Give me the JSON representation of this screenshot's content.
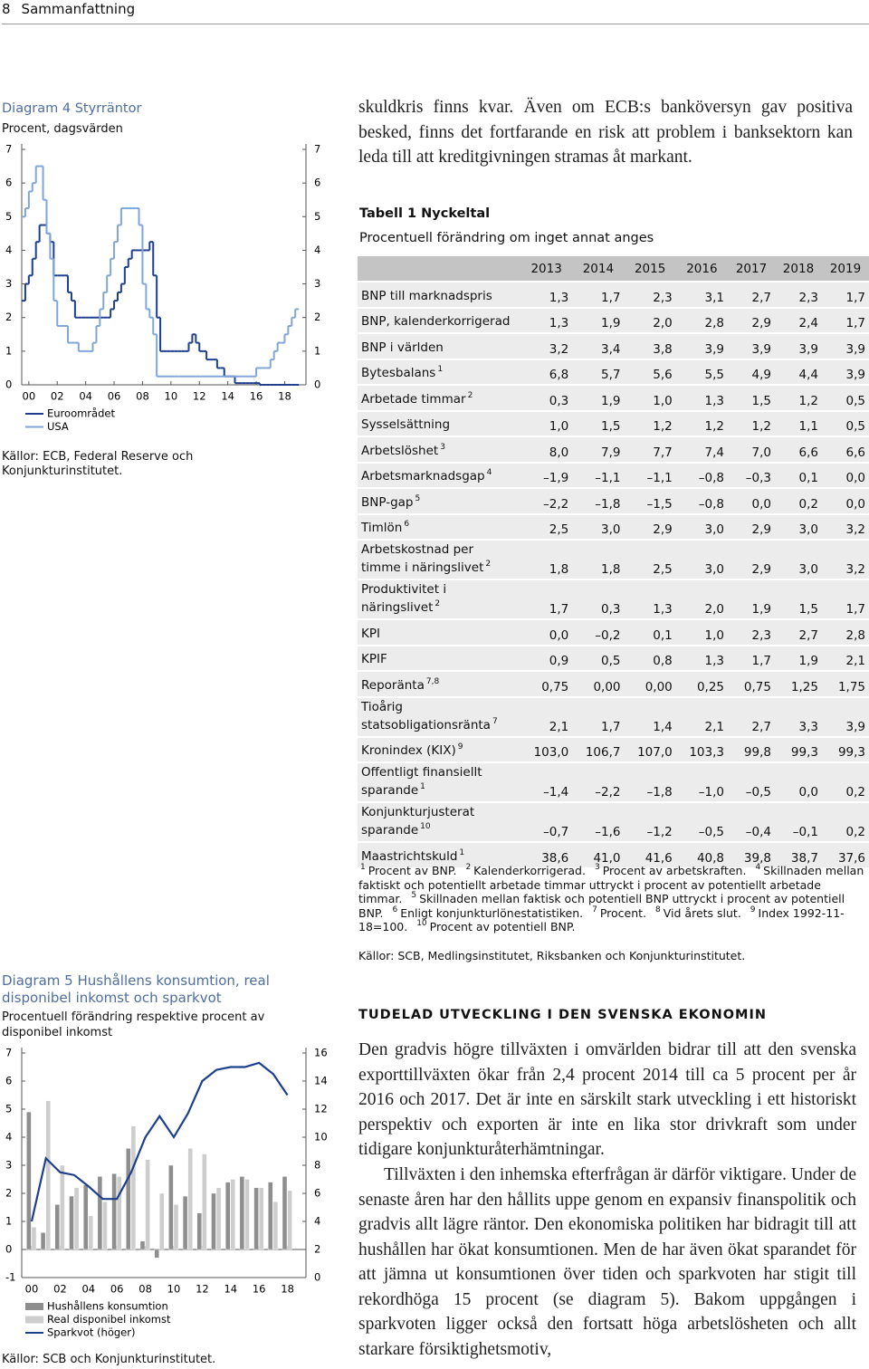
{
  "header": {
    "page": "8",
    "title": "Sammanfattning"
  },
  "chart_data": [
    {
      "type": "line",
      "step": true,
      "title": "Diagram 4 Styrräntor",
      "subtitle": "Procent, dagsvärden",
      "x": [
        1999.5,
        1999.75,
        2000,
        2000.25,
        2000.5,
        2000.75,
        2001,
        2001.25,
        2001.5,
        2001.75,
        2002,
        2002.25,
        2002.5,
        2002.75,
        2003,
        2003.25,
        2003.5,
        2003.75,
        2004,
        2004.25,
        2004.5,
        2004.75,
        2005,
        2005.25,
        2005.5,
        2005.75,
        2006,
        2006.25,
        2006.5,
        2006.75,
        2007,
        2007.25,
        2007.5,
        2007.75,
        2008,
        2008.25,
        2008.5,
        2008.75,
        2009,
        2009.25,
        2009.5,
        2009.75,
        2010,
        2010.25,
        2010.5,
        2010.75,
        2011,
        2011.25,
        2011.5,
        2011.75,
        2012,
        2012.25,
        2012.5,
        2012.75,
        2013,
        2013.25,
        2013.5,
        2013.75,
        2014,
        2014.25,
        2014.5,
        2014.75,
        2015,
        2015.25,
        2015.5,
        2015.75,
        2016,
        2016.25,
        2016.5,
        2016.75,
        2017,
        2017.25,
        2017.5,
        2017.75,
        2018,
        2018.25,
        2018.5,
        2018.75
      ],
      "xlim": [
        1999.5,
        2019.5
      ],
      "xticks": [
        {
          "value": 2000,
          "label": "00"
        },
        {
          "value": 2002,
          "label": "02"
        },
        {
          "value": 2004,
          "label": "04"
        },
        {
          "value": 2006,
          "label": "06"
        },
        {
          "value": 2008,
          "label": "08"
        },
        {
          "value": 2010,
          "label": "10"
        },
        {
          "value": 2012,
          "label": "12"
        },
        {
          "value": 2014,
          "label": "14"
        },
        {
          "value": 2016,
          "label": "16"
        },
        {
          "value": 2018,
          "label": "18"
        }
      ],
      "ylim": [
        0,
        7
      ],
      "yticks": [
        0,
        1,
        2,
        3,
        4,
        5,
        6,
        7
      ],
      "y2lim": [
        0,
        7
      ],
      "y2ticks": [
        0,
        1,
        2,
        3,
        4,
        5,
        6,
        7
      ],
      "series": [
        {
          "name": "Euroområdet",
          "color": "#1d3f8e",
          "values": [
            2.5,
            3,
            3.25,
            3.75,
            4.25,
            4.75,
            4.75,
            4.5,
            4.25,
            3.25,
            3.25,
            3.25,
            3.25,
            2.75,
            2.5,
            2,
            2,
            2,
            2,
            2,
            2,
            2,
            2,
            2,
            2,
            2.25,
            2.5,
            2.75,
            3,
            3.5,
            3.75,
            4,
            4,
            4,
            4,
            4,
            4.25,
            3.25,
            2,
            1,
            1,
            1,
            1,
            1,
            1,
            1,
            1,
            1.25,
            1.5,
            1.25,
            1,
            1,
            0.75,
            0.75,
            0.75,
            0.5,
            0.5,
            0.25,
            0.25,
            0.25,
            0.05,
            0.05,
            0.05,
            0.05,
            0.05,
            0.05,
            0.05,
            0,
            0,
            0,
            0,
            0,
            0,
            0,
            0,
            0,
            0,
            0
          ]
        },
        {
          "name": "USA",
          "color": "#7fa6d6",
          "values": [
            5,
            5.25,
            5.75,
            6,
            6.5,
            6.5,
            5.5,
            4.5,
            3.75,
            2.5,
            1.75,
            1.75,
            1.75,
            1.25,
            1.25,
            1.25,
            1,
            1,
            1,
            1,
            1.25,
            1.75,
            2.25,
            2.75,
            3.25,
            3.75,
            4.25,
            4.75,
            5.25,
            5.25,
            5.25,
            5.25,
            5.25,
            4.75,
            3,
            2.25,
            2,
            1.5,
            0.25,
            0.25,
            0.25,
            0.25,
            0.25,
            0.25,
            0.25,
            0.25,
            0.25,
            0.25,
            0.25,
            0.25,
            0.25,
            0.25,
            0.25,
            0.25,
            0.25,
            0.25,
            0.25,
            0.25,
            0.25,
            0.25,
            0.25,
            0.25,
            0.25,
            0.25,
            0.25,
            0.25,
            0.5,
            0.5,
            0.5,
            0.5,
            0.75,
            1,
            1.25,
            1.25,
            1.5,
            1.75,
            2,
            2.25
          ]
        }
      ],
      "source": "Källor: ECB, Federal Reserve och Konjunkturinstitutet."
    },
    {
      "type": "combo",
      "title": "Diagram 5 Hushållens konsumtion, real disponibel inkomst och sparkvot",
      "subtitle": "Procentuell förändring respektive procent av disponibel inkomst",
      "x": [
        2000,
        2001,
        2002,
        2003,
        2004,
        2005,
        2006,
        2007,
        2008,
        2009,
        2010,
        2011,
        2012,
        2013,
        2014,
        2015,
        2016,
        2017,
        2018
      ],
      "xlim": [
        1999.3,
        2019.3
      ],
      "xticks": [
        {
          "value": 2000,
          "label": "00"
        },
        {
          "value": 2002,
          "label": "02"
        },
        {
          "value": 2004,
          "label": "04"
        },
        {
          "value": 2006,
          "label": "06"
        },
        {
          "value": 2008,
          "label": "08"
        },
        {
          "value": 2010,
          "label": "10"
        },
        {
          "value": 2012,
          "label": "12"
        },
        {
          "value": 2014,
          "label": "14"
        },
        {
          "value": 2016,
          "label": "16"
        },
        {
          "value": 2018,
          "label": "18"
        }
      ],
      "ylim": [
        -1,
        7
      ],
      "yticks": [
        -1,
        0,
        1,
        2,
        3,
        4,
        5,
        6,
        7
      ],
      "y2lim": [
        0,
        16
      ],
      "y2ticks": [
        0,
        2,
        4,
        6,
        8,
        10,
        12,
        14,
        16
      ],
      "series": [
        {
          "name": "Hushållens konsumtion",
          "type": "bar",
          "color": "#8e8e8e",
          "values": [
            4.9,
            0.6,
            1.6,
            1.9,
            2.3,
            2.6,
            2.7,
            3.6,
            0.3,
            -0.3,
            3,
            1.9,
            1.3,
            2,
            2.4,
            2.6,
            2.2,
            2.4,
            2.6
          ]
        },
        {
          "name": "Real disponibel inkomst",
          "type": "bar",
          "color": "#cdcdcd",
          "values": [
            0.8,
            5.3,
            3,
            2.2,
            1.2,
            1.7,
            2.6,
            4.4,
            3.2,
            2,
            1.6,
            3.6,
            3.4,
            2.2,
            2.5,
            2.5,
            2.2,
            1.7,
            2.1
          ]
        },
        {
          "name": "Sparkvot (höger)",
          "type": "line",
          "axis": "y2",
          "color": "#1d3f8e",
          "values": [
            4,
            8.5,
            7.5,
            7.3,
            6.5,
            5.6,
            5.6,
            7.5,
            10,
            11.5,
            10,
            11.7,
            14,
            14.8,
            15,
            15,
            15.3,
            14.5,
            13
          ]
        }
      ],
      "source": "Källor: SCB och Konjunkturinstitutet."
    }
  ],
  "intro": "skuldkris finns kvar. Även om ECB:s banköversyn gav positiva besked, finns det fortfarande en risk att problem i banksektorn kan leda till att kreditgivningen stramas åt markant.",
  "table": {
    "title": "Tabell 1 Nyckeltal",
    "subtitle": "Procentuell förändring om inget annat anges",
    "years": [
      "2013",
      "2014",
      "2015",
      "2016",
      "2017",
      "2018",
      "2019"
    ],
    "rows": [
      {
        "label": "BNP till marknadspris",
        "values": [
          "1,3",
          "1,7",
          "2,3",
          "3,1",
          "2,7",
          "2,3",
          "1,7"
        ]
      },
      {
        "label": "BNP, kalenderkorrigerad",
        "values": [
          "1,3",
          "1,9",
          "2,0",
          "2,8",
          "2,9",
          "2,4",
          "1,7"
        ]
      },
      {
        "label": "BNP i världen",
        "values": [
          "3,2",
          "3,4",
          "3,8",
          "3,9",
          "3,9",
          "3,9",
          "3,9"
        ]
      },
      {
        "label": "Bytesbalans",
        "note": "1",
        "values": [
          "6,8",
          "5,7",
          "5,6",
          "5,5",
          "4,9",
          "4,4",
          "3,9"
        ]
      },
      {
        "label": "Arbetade timmar",
        "note": "2",
        "values": [
          "0,3",
          "1,9",
          "1,0",
          "1,3",
          "1,5",
          "1,2",
          "0,5"
        ]
      },
      {
        "label": "Sysselsättning",
        "values": [
          "1,0",
          "1,5",
          "1,2",
          "1,2",
          "1,2",
          "1,1",
          "0,5"
        ]
      },
      {
        "label": "Arbetslöshet",
        "note": "3",
        "values": [
          "8,0",
          "7,9",
          "7,7",
          "7,4",
          "7,0",
          "6,6",
          "6,6"
        ]
      },
      {
        "label": "Arbetsmarknadsgap",
        "note": "4",
        "values": [
          "–1,9",
          "–1,1",
          "–1,1",
          "–0,8",
          "–0,3",
          "0,1",
          "0,0"
        ]
      },
      {
        "label": "BNP-gap",
        "note": "5",
        "values": [
          "–2,2",
          "–1,8",
          "–1,5",
          "–0,8",
          "0,0",
          "0,2",
          "0,0"
        ]
      },
      {
        "label": "Timlön",
        "note": "6",
        "values": [
          "2,5",
          "3,0",
          "2,9",
          "3,0",
          "2,9",
          "3,0",
          "3,2"
        ]
      },
      {
        "label": "Arbetskostnad per\ntimme i näringslivet",
        "note": "2",
        "values": [
          "1,8",
          "1,8",
          "2,5",
          "3,0",
          "2,9",
          "3,0",
          "3,2"
        ]
      },
      {
        "label": "Produktivitet i\nnäringslivet",
        "note": "2",
        "values": [
          "1,7",
          "0,3",
          "1,3",
          "2,0",
          "1,9",
          "1,5",
          "1,7"
        ]
      },
      {
        "label": "KPI",
        "values": [
          "0,0",
          "–0,2",
          "0,1",
          "1,0",
          "2,3",
          "2,7",
          "2,8"
        ]
      },
      {
        "label": "KPIF",
        "values": [
          "0,9",
          "0,5",
          "0,8",
          "1,3",
          "1,7",
          "1,9",
          "2,1"
        ]
      },
      {
        "label": "Reporänta",
        "note": "7,8",
        "values": [
          "0,75",
          "0,00",
          "0,00",
          "0,25",
          "0,75",
          "1,25",
          "1,75"
        ]
      },
      {
        "label": "Tioårig\nstatsobligationsränta",
        "note": "7",
        "values": [
          "2,1",
          "1,7",
          "1,4",
          "2,1",
          "2,7",
          "3,3",
          "3,9"
        ]
      },
      {
        "label": "Kronindex (KIX)",
        "note": "9",
        "values": [
          "103,0",
          "106,7",
          "107,0",
          "103,3",
          "99,8",
          "99,3",
          "99,3"
        ]
      },
      {
        "label": "Offentligt finansiellt\nsparande",
        "note": "1",
        "values": [
          "–1,4",
          "–2,2",
          "–1,8",
          "–1,0",
          "–0,5",
          "0,0",
          "0,2"
        ]
      },
      {
        "label": "Konjunkturjusterat\nsparande",
        "note": "10",
        "values": [
          "–0,7",
          "–1,6",
          "–1,2",
          "–0,5",
          "–0,4",
          "–0,1",
          "0,2"
        ]
      },
      {
        "label": "Maastrichtskuld",
        "note": "1",
        "values": [
          "38,6",
          "41,0",
          "41,6",
          "40,8",
          "39,8",
          "38,7",
          "37,6"
        ]
      }
    ],
    "footnotes": [
      {
        "n": "1",
        "text": "Procent av BNP."
      },
      {
        "n": "2",
        "text": "Kalenderkorrigerad."
      },
      {
        "n": "3",
        "text": "Procent av arbetskraften."
      },
      {
        "n": "4",
        "text": "Skillnaden mellan faktiskt och potentiellt arbetade timmar uttryckt i procent av potentiellt arbetade timmar."
      },
      {
        "n": "5",
        "text": "Skillnaden mellan faktisk och potentiell BNP uttryckt i procent av potentiell BNP."
      },
      {
        "n": "6",
        "text": "Enligt konjunkturlönestatistiken."
      },
      {
        "n": "7",
        "text": "Procent."
      },
      {
        "n": "8",
        "text": "Vid årets slut."
      },
      {
        "n": "9",
        "text": "Index 1992-11-18=100."
      },
      {
        "n": "10",
        "text": "Procent av potentiell BNP."
      }
    ],
    "source": "Källor: SCB, Medlingsinstitutet, Riksbanken och Konjunkturinstitutet."
  },
  "section": {
    "heading": "TUDELAD UTVECKLING I DEN SVENSKA EKONOMIN",
    "paragraphs": [
      "Den gradvis högre tillväxten i omvärlden bidrar till att den svenska exporttillväxten ökar från 2,4 procent 2014 till ca 5 procent per år 2016 och 2017. Det är inte en särskilt stark utveckling i ett historiskt perspektiv och exporten är inte en lika stor drivkraft som under tidigare konjunkturåterhämtningar.",
      "Tillväxten i den inhemska efterfrågan är därför viktigare. Under de senaste åren har den hållits uppe genom en expansiv finanspolitik och gradvis allt lägre räntor. Den ekonomiska politiken har bidragit till att hushållen har ökat konsumtionen. Men de har även ökat sparandet för att jämna ut konsumtionen över tiden och sparkvoten har stigit till rekordhöga 15 procent (se diagram 5). Bakom uppgången i sparkvoten ligger också den fortsatt höga arbetslösheten och allt starkare försiktighetsmotiv,"
    ]
  }
}
